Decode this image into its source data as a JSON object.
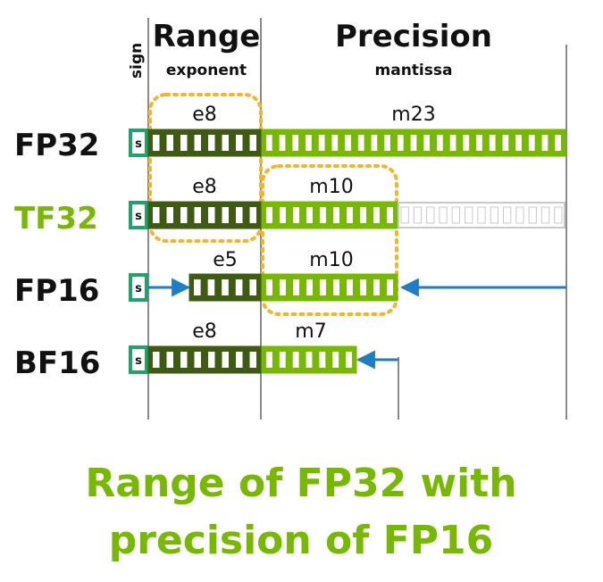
{
  "headers": {
    "sign": "sign",
    "range": "Range",
    "exponent": "exponent",
    "precision": "Precision",
    "mantissa": "mantissa"
  },
  "formats": [
    {
      "id": "fp32",
      "name": "FP32",
      "name_color": "#111111",
      "sign": "s",
      "exponent_label": "e8",
      "exponent_bits": 8,
      "mantissa_label": "m23",
      "mantissa_bits": 23,
      "padding_bits": 0
    },
    {
      "id": "tf32",
      "name": "TF32",
      "name_color": "#76b900",
      "sign": "s",
      "exponent_label": "e8",
      "exponent_bits": 8,
      "mantissa_label": "m10",
      "mantissa_bits": 10,
      "padding_bits": 13
    },
    {
      "id": "fp16",
      "name": "FP16",
      "name_color": "#111111",
      "sign": "s",
      "exponent_label": "e5",
      "exponent_bits": 5,
      "mantissa_label": "m10",
      "mantissa_bits": 10,
      "padding_bits": 0
    },
    {
      "id": "bf16",
      "name": "BF16",
      "name_color": "#111111",
      "sign": "s",
      "exponent_label": "e8",
      "exponent_bits": 8,
      "mantissa_label": "m7",
      "mantissa_bits": 7,
      "padding_bits": 0
    }
  ],
  "caption": {
    "line1": "Range of FP32 with",
    "line2": "precision of FP16"
  },
  "colors": {
    "exponent_fill": "#3e5a13",
    "mantissa_fill": "#76b900",
    "sign_fill": "#1fa36a",
    "padding_stroke": "#c8c8c8",
    "highlight": "#f5b52a",
    "arrow": "#1f7dc4",
    "divider": "#8a8a8a",
    "caption": "#76b900"
  }
}
